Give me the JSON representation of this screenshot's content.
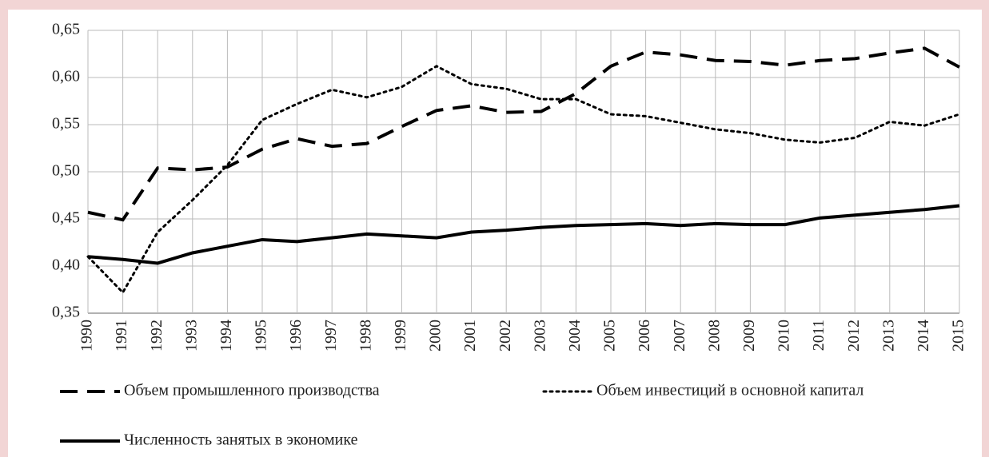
{
  "chart_data": {
    "type": "line",
    "categories": [
      "1990",
      "1991",
      "1992",
      "1993",
      "1994",
      "1995",
      "1996",
      "1997",
      "1998",
      "1999",
      "2000",
      "2001",
      "2002",
      "2003",
      "2004",
      "2005",
      "2006",
      "2007",
      "2008",
      "2009",
      "2010",
      "2011",
      "2012",
      "2013",
      "2014",
      "2015"
    ],
    "series": [
      {
        "name": "Объем промышленного производства",
        "color": "#000000",
        "style": "dashed",
        "values": [
          0.457,
          0.449,
          0.504,
          0.502,
          0.505,
          0.524,
          0.535,
          0.527,
          0.53,
          0.548,
          0.565,
          0.57,
          0.563,
          0.564,
          0.583,
          0.612,
          0.627,
          0.624,
          0.618,
          0.617,
          0.613,
          0.618,
          0.62,
          0.626,
          0.631,
          0.611
        ]
      },
      {
        "name": "Объем инвестиций в основной капитал",
        "color": "#000000",
        "style": "dotted",
        "values": [
          0.41,
          0.372,
          0.436,
          0.47,
          0.507,
          0.555,
          0.572,
          0.587,
          0.579,
          0.59,
          0.612,
          0.593,
          0.588,
          0.577,
          0.577,
          0.561,
          0.559,
          0.552,
          0.545,
          0.541,
          0.534,
          0.531,
          0.536,
          0.553,
          0.549,
          0.561
        ]
      },
      {
        "name": "Численность занятых в экономике",
        "color": "#000000",
        "style": "solid",
        "values": [
          0.41,
          0.407,
          0.403,
          0.414,
          0.421,
          0.428,
          0.426,
          0.43,
          0.434,
          0.432,
          0.43,
          0.436,
          0.438,
          0.441,
          0.443,
          0.444,
          0.445,
          0.443,
          0.445,
          0.444,
          0.444,
          0.451,
          0.454,
          0.457,
          0.46,
          0.464
        ]
      }
    ],
    "ylim": [
      0.35,
      0.65
    ],
    "yticks": [
      {
        "value": 0.35,
        "label": "0,35"
      },
      {
        "value": 0.4,
        "label": "0,40"
      },
      {
        "value": 0.45,
        "label": "0,45"
      },
      {
        "value": 0.5,
        "label": "0,50"
      },
      {
        "value": 0.55,
        "label": "0,55"
      },
      {
        "value": 0.6,
        "label": "0,60"
      },
      {
        "value": 0.65,
        "label": "0,65"
      }
    ],
    "grid": true
  }
}
